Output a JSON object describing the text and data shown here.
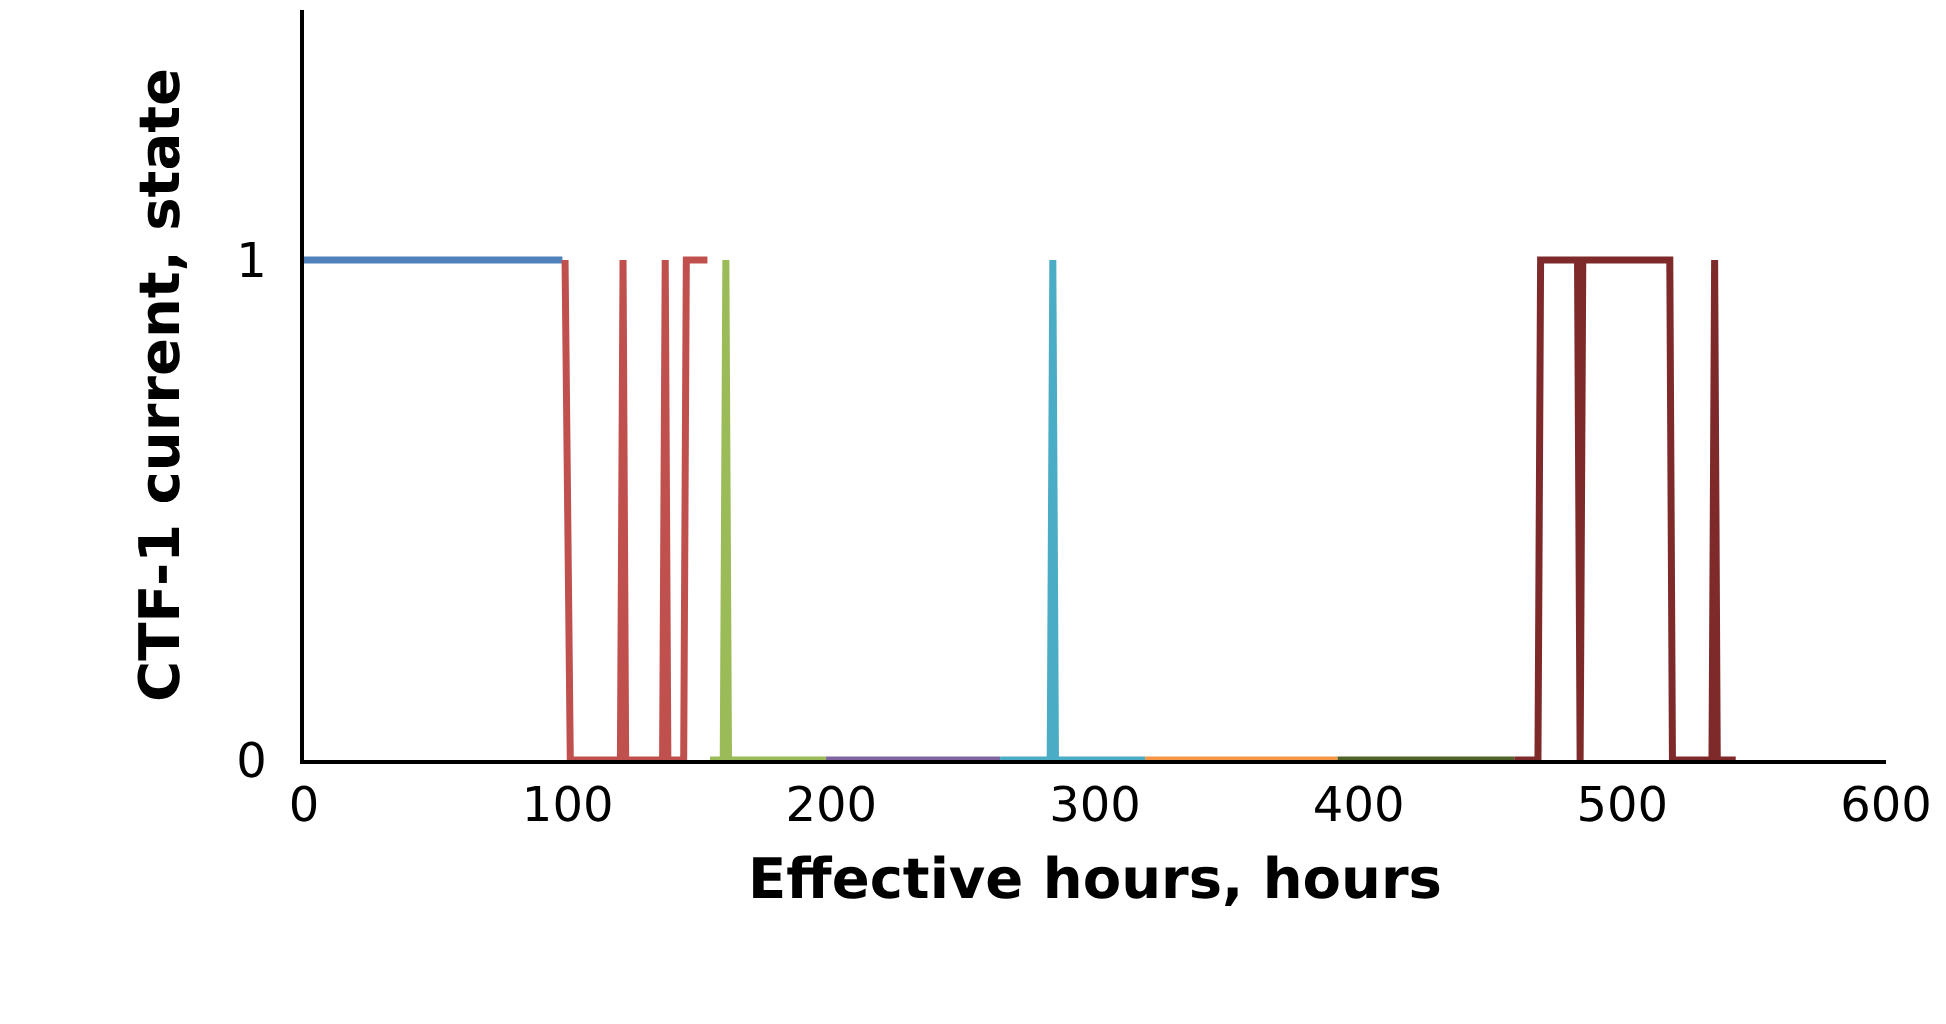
{
  "chart_data": {
    "type": "line",
    "xlabel": "Effective hours, hours",
    "ylabel": "CTF-1 current, state",
    "xlim": [
      0,
      600
    ],
    "xticks": [
      0,
      100,
      200,
      300,
      400,
      500,
      600
    ],
    "ylim": [
      0,
      1.5
    ],
    "yticks": [
      0,
      1
    ],
    "marker": "none",
    "line_style": "solid",
    "series": [
      {
        "color": "#4f81bd",
        "x": [
          0,
          98
        ],
        "values": [
          1,
          1
        ]
      },
      {
        "color": "#c0504d",
        "x": [
          99,
          101,
          120,
          121,
          122,
          136,
          137,
          138,
          144,
          145,
          153
        ],
        "values": [
          1,
          0,
          0,
          1,
          0,
          0,
          1,
          0,
          0,
          1,
          1
        ]
      },
      {
        "color": "#9bbb59",
        "x": [
          154,
          159,
          160,
          161,
          198
        ],
        "values": [
          0,
          0,
          1,
          0,
          0
        ]
      },
      {
        "color": "#8064a2",
        "x": [
          198,
          264
        ],
        "values": [
          0,
          0
        ]
      },
      {
        "color": "#4bacc6",
        "x": [
          264,
          283,
          284,
          285,
          319
        ],
        "values": [
          0,
          0,
          1,
          0,
          0
        ]
      },
      {
        "color": "#f79646",
        "x": [
          319,
          392
        ],
        "values": [
          0,
          0
        ]
      },
      {
        "color": "#4f6228",
        "x": [
          392,
          459
        ],
        "values": [
          0,
          0
        ]
      },
      {
        "color": "#7f2a2a",
        "x": [
          459,
          468,
          469,
          483,
          484,
          485,
          518,
          519,
          534,
          535,
          536,
          543
        ],
        "values": [
          0,
          0,
          1,
          1,
          0,
          1,
          1,
          0,
          0,
          1,
          0,
          0
        ]
      }
    ]
  }
}
